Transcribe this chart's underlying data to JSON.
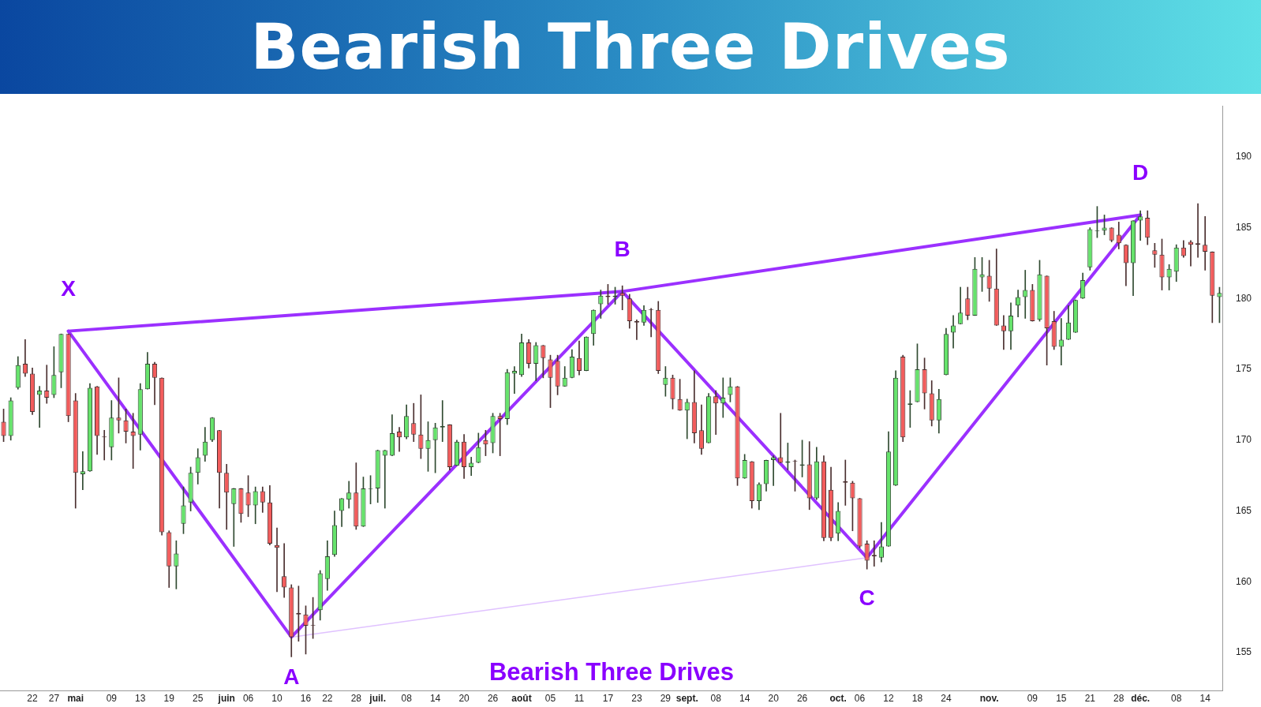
{
  "chart_data": {
    "type": "candlestick",
    "title": "Bearish Three Drives",
    "categories": [
      null,
      null,
      null,
      null,
      "22",
      null,
      null,
      "27",
      null,
      null,
      "mai",
      null,
      null,
      null,
      null,
      "09",
      null,
      null,
      null,
      "13",
      null,
      null,
      null,
      "19",
      null,
      null,
      null,
      "25",
      null,
      null,
      null,
      "juin",
      null,
      null,
      "06",
      null,
      null,
      null,
      "10",
      null,
      null,
      null,
      "16",
      null,
      null,
      "22",
      null,
      null,
      null,
      "28",
      null,
      null,
      "juil.",
      null,
      null,
      null,
      "08",
      null,
      null,
      null,
      "14",
      null,
      null,
      null,
      "20",
      null,
      null,
      null,
      "26",
      null,
      null,
      null,
      "août",
      null,
      null,
      null,
      "05",
      null,
      null,
      null,
      "11",
      null,
      null,
      null,
      "17",
      null,
      null,
      null,
      "23",
      null,
      null,
      null,
      "29",
      null,
      null,
      "sept.",
      null,
      null,
      null,
      "08",
      null,
      null,
      null,
      "14",
      null,
      null,
      null,
      "20",
      null,
      null,
      null,
      "26",
      null,
      null,
      null,
      null,
      "oct.",
      null,
      null,
      "06",
      null,
      null,
      null,
      "12",
      null,
      null,
      null,
      "18",
      null,
      null,
      null,
      "24",
      null,
      null,
      null,
      null,
      null,
      "nov.",
      null,
      null,
      null,
      null,
      null,
      "09",
      null,
      null,
      null,
      "15",
      null,
      null,
      null,
      "21",
      null,
      null,
      null,
      "28",
      null,
      null,
      "déc.",
      null,
      null,
      null,
      null,
      "08",
      null,
      null,
      null,
      "14",
      null,
      null
    ],
    "ohlc": [
      [
        171.3,
        172.2,
        169.9,
        170.3
      ],
      [
        170.3,
        173.0,
        170.0,
        172.8
      ],
      [
        173.7,
        175.9,
        173.6,
        175.3
      ],
      [
        175.4,
        177.1,
        174.5,
        174.7
      ],
      [
        174.7,
        175.1,
        171.8,
        172.0
      ],
      [
        173.2,
        173.8,
        170.9,
        173.5
      ],
      [
        173.5,
        175.3,
        172.6,
        173.0
      ],
      [
        173.2,
        176.6,
        173.0,
        174.6
      ],
      [
        174.8,
        177.5,
        173.7,
        177.5
      ],
      [
        177.5,
        177.5,
        171.3,
        171.7
      ],
      [
        172.8,
        173.3,
        165.2,
        167.7
      ],
      [
        167.6,
        169.2,
        166.5,
        167.8
      ],
      [
        167.8,
        174.0,
        167.8,
        173.7
      ],
      [
        173.8,
        173.8,
        169.0,
        170.3
      ],
      [
        170.25,
        170.7,
        168.6,
        170.2
      ],
      [
        169.5,
        172.8,
        168.6,
        171.6
      ],
      [
        171.6,
        174.4,
        170.5,
        171.4
      ],
      [
        171.4,
        172.2,
        169.8,
        170.6
      ],
      [
        170.6,
        171.9,
        168.0,
        170.3
      ],
      [
        170.4,
        174.0,
        169.3,
        173.6
      ],
      [
        173.6,
        176.2,
        173.6,
        175.4
      ],
      [
        175.4,
        175.5,
        172.5,
        174.4
      ],
      [
        174.4,
        174.4,
        163.3,
        163.5
      ],
      [
        163.5,
        163.6,
        159.6,
        161.1
      ],
      [
        161.1,
        162.9,
        159.5,
        162.0
      ],
      [
        164.1,
        166.7,
        163.4,
        165.4
      ],
      [
        165.6,
        168.1,
        165.0,
        167.7
      ],
      [
        167.7,
        169.4,
        166.9,
        168.8
      ],
      [
        168.9,
        170.9,
        168.5,
        169.9
      ],
      [
        170.0,
        171.6,
        169.9,
        171.6
      ],
      [
        170.7,
        170.7,
        165.2,
        167.7
      ],
      [
        167.7,
        168.3,
        163.7,
        166.3
      ],
      [
        165.5,
        166.6,
        162.5,
        166.6
      ],
      [
        166.6,
        166.6,
        164.2,
        164.8
      ],
      [
        166.3,
        167.5,
        164.6,
        165.4
      ],
      [
        165.4,
        166.7,
        164.1,
        166.4
      ],
      [
        166.4,
        166.7,
        164.9,
        165.6
      ],
      [
        165.6,
        166.8,
        162.6,
        162.7
      ],
      [
        162.6,
        163.8,
        159.3,
        162.4
      ],
      [
        160.4,
        162.7,
        158.9,
        159.6
      ],
      [
        159.6,
        159.8,
        154.7,
        156.1
      ],
      [
        157.8,
        159.7,
        155.8,
        157.7
      ],
      [
        157.7,
        158.3,
        154.9,
        156.9
      ],
      [
        156.95,
        158.9,
        156.0,
        156.9
      ],
      [
        158.0,
        160.8,
        157.3,
        160.6
      ],
      [
        160.2,
        162.9,
        159.4,
        161.8
      ],
      [
        161.9,
        165.0,
        161.8,
        164.0
      ],
      [
        165.0,
        165.9,
        163.9,
        165.9
      ],
      [
        165.8,
        167.1,
        165.2,
        166.3
      ],
      [
        166.3,
        168.4,
        163.7,
        163.9
      ],
      [
        163.9,
        167.4,
        163.9,
        166.6
      ],
      [
        166.55,
        167.5,
        165.5,
        166.6
      ],
      [
        166.6,
        169.3,
        165.6,
        169.3
      ],
      [
        168.9,
        169.3,
        165.2,
        169.3
      ],
      [
        168.9,
        171.8,
        168.9,
        170.5
      ],
      [
        170.6,
        170.9,
        169.2,
        170.2
      ],
      [
        170.2,
        172.5,
        170.1,
        171.7
      ],
      [
        171.2,
        172.6,
        169.9,
        170.4
      ],
      [
        170.4,
        173.2,
        168.7,
        169.4
      ],
      [
        169.4,
        171.3,
        167.8,
        170.0
      ],
      [
        170.0,
        171.2,
        167.7,
        170.9
      ],
      [
        170.9,
        172.8,
        169.9,
        171.0
      ],
      [
        171.1,
        171.1,
        167.9,
        168.1
      ],
      [
        168.2,
        170.0,
        168.2,
        169.9
      ],
      [
        169.9,
        170.4,
        167.3,
        168.1
      ],
      [
        168.1,
        168.8,
        167.5,
        168.4
      ],
      [
        168.4,
        170.5,
        168.4,
        169.5
      ],
      [
        170.0,
        170.7,
        168.9,
        169.7
      ],
      [
        169.8,
        171.9,
        169.1,
        171.7
      ],
      [
        171.7,
        171.9,
        168.9,
        171.5
      ],
      [
        171.5,
        175.0,
        171.1,
        174.8
      ],
      [
        174.7,
        175.2,
        173.3,
        174.9
      ],
      [
        174.6,
        177.5,
        174.5,
        176.9
      ],
      [
        176.9,
        177.1,
        175.1,
        175.4
      ],
      [
        175.4,
        176.9,
        174.2,
        176.7
      ],
      [
        176.7,
        176.7,
        174.4,
        175.8
      ],
      [
        175.7,
        176.0,
        172.3,
        174.4
      ],
      [
        175.6,
        176.0,
        173.2,
        173.8
      ],
      [
        173.8,
        175.2,
        173.8,
        174.4
      ],
      [
        174.4,
        176.4,
        174.4,
        175.9
      ],
      [
        175.8,
        177.0,
        174.6,
        174.9
      ],
      [
        174.9,
        177.3,
        174.9,
        177.3
      ],
      [
        177.5,
        179.2,
        176.7,
        179.2
      ],
      [
        179.6,
        180.6,
        178.6,
        180.2
      ],
      [
        180.2,
        181.0,
        179.6,
        180.1
      ],
      [
        180.1,
        180.8,
        179.6,
        180.2
      ],
      [
        180.4,
        180.9,
        179.2,
        180.2
      ],
      [
        180.0,
        180.3,
        177.9,
        178.4
      ],
      [
        178.4,
        178.5,
        177.1,
        178.3
      ],
      [
        178.3,
        179.5,
        178.1,
        179.2
      ],
      [
        179.25,
        179.3,
        177.3,
        179.2
      ],
      [
        179.2,
        179.8,
        174.7,
        174.9
      ],
      [
        173.9,
        175.2,
        173.1,
        174.4
      ],
      [
        174.4,
        174.6,
        172.2,
        172.9
      ],
      [
        172.9,
        174.3,
        172.1,
        172.1
      ],
      [
        172.1,
        172.9,
        170.1,
        172.7
      ],
      [
        172.7,
        174.9,
        169.8,
        170.5
      ],
      [
        170.7,
        172.5,
        169.0,
        169.4
      ],
      [
        169.8,
        173.3,
        169.8,
        173.1
      ],
      [
        173.1,
        173.5,
        170.4,
        172.6
      ],
      [
        172.6,
        174.4,
        171.6,
        173.0
      ],
      [
        173.2,
        174.4,
        172.7,
        173.8
      ],
      [
        173.8,
        173.8,
        166.8,
        167.3
      ],
      [
        167.3,
        169.0,
        167.3,
        168.6
      ],
      [
        168.5,
        168.5,
        165.2,
        165.7
      ],
      [
        165.7,
        167.0,
        165.1,
        166.9
      ],
      [
        166.9,
        168.6,
        166.4,
        168.6
      ],
      [
        168.6,
        168.9,
        166.8,
        168.8
      ],
      [
        168.8,
        171.9,
        168.4,
        168.4
      ],
      [
        168.4,
        169.8,
        167.9,
        168.5
      ],
      [
        168.55,
        168.6,
        166.4,
        168.5
      ],
      [
        168.2,
        170.0,
        167.4,
        168.3
      ],
      [
        168.3,
        169.9,
        165.1,
        165.9
      ],
      [
        165.9,
        169.5,
        165.8,
        168.5
      ],
      [
        168.5,
        168.9,
        162.9,
        163.1
      ],
      [
        166.5,
        168.1,
        162.9,
        163.1
      ],
      [
        163.4,
        165.6,
        162.9,
        165.0
      ],
      [
        167.1,
        168.6,
        165.4,
        167.0
      ],
      [
        167.0,
        167.1,
        163.6,
        165.9
      ],
      [
        165.9,
        165.9,
        162.4,
        162.5
      ],
      [
        162.7,
        162.9,
        160.9,
        161.5
      ],
      [
        161.9,
        162.9,
        161.1,
        161.8
      ],
      [
        161.7,
        164.2,
        161.4,
        162.5
      ],
      [
        162.5,
        170.6,
        162.5,
        169.2
      ],
      [
        166.8,
        174.9,
        166.8,
        174.4
      ],
      [
        175.9,
        176.0,
        169.9,
        170.2
      ],
      [
        172.5,
        173.5,
        170.9,
        172.6
      ],
      [
        172.7,
        176.8,
        172.7,
        175.0
      ],
      [
        175.0,
        175.8,
        172.2,
        173.3
      ],
      [
        173.3,
        174.2,
        171.0,
        171.4
      ],
      [
        171.4,
        173.6,
        170.5,
        172.9
      ],
      [
        174.6,
        177.9,
        174.6,
        177.5
      ],
      [
        177.6,
        178.8,
        176.5,
        178.1
      ],
      [
        178.2,
        180.8,
        178.2,
        179.0
      ],
      [
        180.0,
        180.8,
        178.5,
        178.8
      ],
      [
        178.8,
        182.9,
        178.8,
        182.1
      ],
      [
        181.5,
        182.9,
        180.5,
        181.7
      ],
      [
        181.6,
        182.7,
        179.8,
        180.7
      ],
      [
        180.7,
        183.5,
        178.1,
        178.1
      ],
      [
        178.1,
        178.8,
        176.4,
        177.7
      ],
      [
        177.7,
        179.7,
        176.4,
        178.8
      ],
      [
        179.5,
        180.6,
        178.7,
        180.1
      ],
      [
        180.1,
        182.0,
        178.6,
        180.6
      ],
      [
        180.6,
        181.0,
        178.4,
        178.4
      ],
      [
        178.5,
        182.7,
        178.4,
        181.7
      ],
      [
        181.6,
        181.6,
        175.3,
        177.9
      ],
      [
        178.4,
        179.1,
        176.4,
        176.6
      ],
      [
        176.6,
        178.6,
        175.3,
        177.1
      ],
      [
        177.1,
        179.5,
        177.1,
        178.3
      ],
      [
        177.6,
        179.9,
        177.6,
        179.9
      ],
      [
        180.0,
        181.8,
        180.0,
        181.3
      ],
      [
        182.2,
        185.0,
        182.0,
        184.9
      ],
      [
        184.75,
        186.5,
        184.3,
        184.8
      ],
      [
        184.8,
        185.9,
        184.5,
        185.0
      ],
      [
        185.0,
        185.0,
        184.0,
        184.1
      ],
      [
        184.5,
        185.4,
        183.5,
        183.9
      ],
      [
        183.8,
        183.8,
        180.9,
        182.5
      ],
      [
        182.5,
        185.5,
        180.2,
        185.5
      ],
      [
        185.5,
        186.2,
        184.1,
        185.8
      ],
      [
        185.7,
        186.2,
        183.8,
        184.3
      ],
      [
        183.4,
        183.9,
        182.2,
        183.1
      ],
      [
        183.1,
        184.2,
        180.6,
        181.5
      ],
      [
        181.5,
        182.4,
        180.6,
        182.1
      ],
      [
        181.9,
        183.8,
        181.2,
        183.6
      ],
      [
        183.6,
        184.1,
        182.9,
        183.0
      ],
      [
        184.0,
        184.1,
        182.3,
        183.8
      ],
      [
        183.9,
        186.7,
        182.9,
        183.8
      ],
      [
        183.8,
        185.8,
        182.0,
        183.3
      ],
      [
        183.3,
        183.3,
        178.3,
        180.2
      ],
      [
        180.1,
        180.8,
        178.3,
        180.4
      ]
    ],
    "series": [
      {
        "type": "line",
        "color": "#9b30ff",
        "values": [
          null,
          null,
          null,
          null,
          null,
          null,
          null,
          null,
          null,
          177.7,
          null,
          null,
          null,
          null,
          null,
          null,
          null,
          null,
          null,
          null,
          null,
          null,
          null,
          null,
          null,
          null,
          null,
          null,
          null,
          null,
          null,
          null,
          null,
          null,
          null,
          null,
          null,
          null,
          null,
          null,
          156.1,
          null,
          null,
          null,
          null,
          null,
          null,
          null,
          null,
          null,
          null,
          null,
          null,
          null,
          null,
          null,
          null,
          null,
          null,
          null,
          null,
          null,
          null,
          null,
          null,
          null,
          null,
          null,
          null,
          null,
          null,
          null,
          null,
          null,
          null,
          null,
          null,
          null,
          null,
          null,
          null,
          null,
          null,
          null,
          null,
          null,
          180.5,
          null,
          null,
          null,
          null,
          null,
          null,
          null,
          null,
          null,
          null,
          null,
          null,
          null,
          null,
          null,
          null,
          null,
          null,
          null,
          null,
          null,
          null,
          null,
          null,
          null,
          null,
          null,
          null,
          null,
          null,
          null,
          null,
          null,
          161.7,
          null,
          null,
          null,
          null,
          null,
          null,
          null,
          null,
          null,
          null,
          null,
          null,
          null,
          null,
          null,
          null,
          null,
          null,
          null,
          null,
          null,
          null,
          null,
          null,
          null,
          null,
          null,
          null,
          null,
          null,
          null,
          null,
          null,
          null,
          null,
          null,
          null,
          185.9,
          null,
          null,
          null,
          null,
          null,
          null,
          null,
          null,
          null,
          null,
          null
        ]
      },
      {
        "type": "line",
        "color": "#9b30ff",
        "values": [
          null,
          null,
          null,
          null,
          null,
          null,
          null,
          null,
          null,
          177.7,
          null,
          null,
          null,
          null,
          null,
          null,
          null,
          null,
          null,
          null,
          null,
          null,
          null,
          null,
          null,
          null,
          null,
          null,
          null,
          null,
          null,
          null,
          null,
          null,
          null,
          null,
          null,
          null,
          null,
          null,
          null,
          null,
          null,
          null,
          null,
          null,
          null,
          null,
          null,
          null,
          null,
          null,
          null,
          null,
          null,
          null,
          null,
          null,
          null,
          null,
          null,
          null,
          null,
          null,
          null,
          null,
          null,
          null,
          null,
          null,
          null,
          null,
          null,
          null,
          null,
          null,
          null,
          null,
          null,
          null,
          null,
          null,
          null,
          null,
          null,
          null,
          180.5,
          null,
          null,
          null,
          null,
          null,
          null,
          null,
          null,
          null,
          null,
          null,
          null,
          null,
          null,
          null,
          null,
          null,
          null,
          null,
          null,
          null,
          null,
          null,
          null,
          null,
          null,
          null,
          null,
          null,
          null,
          null,
          null,
          null,
          null,
          null,
          null,
          null,
          null,
          null,
          null,
          null,
          null,
          null,
          null,
          null,
          null,
          null,
          null,
          null,
          null,
          null,
          null,
          null,
          null,
          null,
          null,
          null,
          null,
          null,
          null,
          null,
          null,
          null,
          null,
          null,
          null,
          null,
          null,
          null,
          null,
          null,
          185.9,
          null,
          null,
          null,
          null,
          null,
          null,
          null,
          null,
          null,
          null,
          null
        ]
      },
      {
        "type": "line",
        "color": "#e0c2ff",
        "values": [
          null,
          null,
          null,
          null,
          null,
          null,
          null,
          null,
          null,
          null,
          null,
          null,
          null,
          null,
          null,
          null,
          null,
          null,
          null,
          null,
          null,
          null,
          null,
          null,
          null,
          null,
          null,
          null,
          null,
          null,
          null,
          null,
          null,
          null,
          null,
          null,
          null,
          null,
          null,
          null,
          156.1,
          null,
          null,
          null,
          null,
          null,
          null,
          null,
          null,
          null,
          null,
          null,
          null,
          null,
          null,
          null,
          null,
          null,
          null,
          null,
          null,
          null,
          null,
          null,
          null,
          null,
          null,
          null,
          null,
          null,
          null,
          null,
          null,
          null,
          null,
          null,
          null,
          null,
          null,
          null,
          null,
          null,
          null,
          null,
          null,
          null,
          null,
          null,
          null,
          null,
          null,
          null,
          null,
          null,
          null,
          null,
          null,
          null,
          null,
          null,
          null,
          null,
          null,
          null,
          null,
          null,
          null,
          null,
          null,
          null,
          null,
          null,
          null,
          null,
          null,
          null,
          null,
          null,
          null,
          null,
          161.7,
          null,
          null,
          null,
          null,
          null,
          null,
          null,
          null,
          null,
          null,
          null,
          null,
          null,
          null,
          null,
          null,
          null,
          null,
          null,
          null,
          null,
          null,
          null,
          null,
          null,
          null,
          null,
          null,
          null,
          null,
          null,
          null,
          null,
          null,
          null,
          null,
          null,
          null,
          null,
          null,
          null,
          null,
          null,
          null,
          null,
          null,
          null,
          null,
          null
        ]
      }
    ],
    "annotations": [
      "X",
      "A",
      "B",
      "C",
      "D",
      "Bearish Three Drives"
    ],
    "ylim": [
      152.3,
      193.6
    ],
    "yticks": [
      155,
      160,
      165,
      170,
      175,
      180,
      185,
      190
    ],
    "grid": false,
    "legend": false
  }
}
